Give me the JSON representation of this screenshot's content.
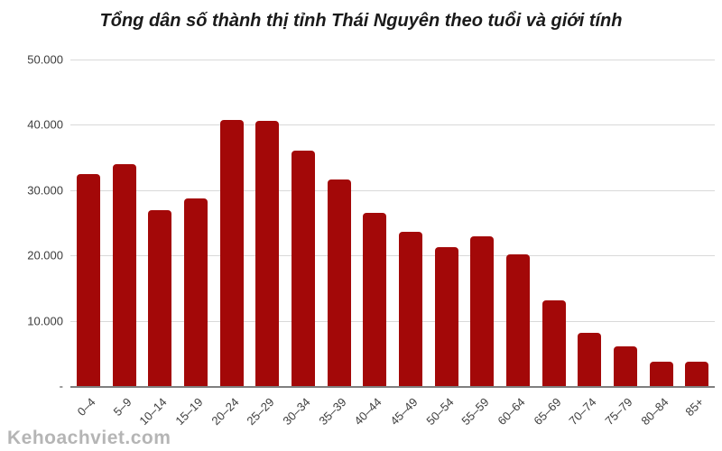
{
  "watermark": "Kehoachviet.com",
  "colors": {
    "bar": "#a30808",
    "gridline": "#d9d9d9",
    "axis_line": "#7f7f7f",
    "title_text": "#1a1a1a",
    "tick_text": "#3d3d3d",
    "watermark_text": "#b5b5b5"
  },
  "chart_data": {
    "type": "bar",
    "title": "Tổng dân số thành thị tỉnh Thái Nguyên theo tuổi và giới tính",
    "xlabel": "",
    "ylabel": "",
    "categories": [
      "0–4",
      "5–9",
      "10–14",
      "15–19",
      "20–24",
      "25–29",
      "30–34",
      "35–39",
      "40–44",
      "45–49",
      "50–54",
      "55–59",
      "60–64",
      "65–69",
      "70–74",
      "75–79",
      "80–84",
      "85+"
    ],
    "values": [
      32400,
      34000,
      26900,
      28800,
      40800,
      40600,
      36000,
      31600,
      26500,
      23600,
      21300,
      22900,
      20100,
      13100,
      8200,
      6100,
      3800,
      3700
    ],
    "ylim": [
      0,
      50000
    ],
    "y_ticks": [
      {
        "value": 0,
        "label": "-"
      },
      {
        "value": 10000,
        "label": "10.000"
      },
      {
        "value": 20000,
        "label": "20.000"
      },
      {
        "value": 30000,
        "label": "30.000"
      },
      {
        "value": 40000,
        "label": "40.000"
      },
      {
        "value": 50000,
        "label": "50.000"
      }
    ],
    "grid": "horizontal",
    "legend": "none"
  }
}
